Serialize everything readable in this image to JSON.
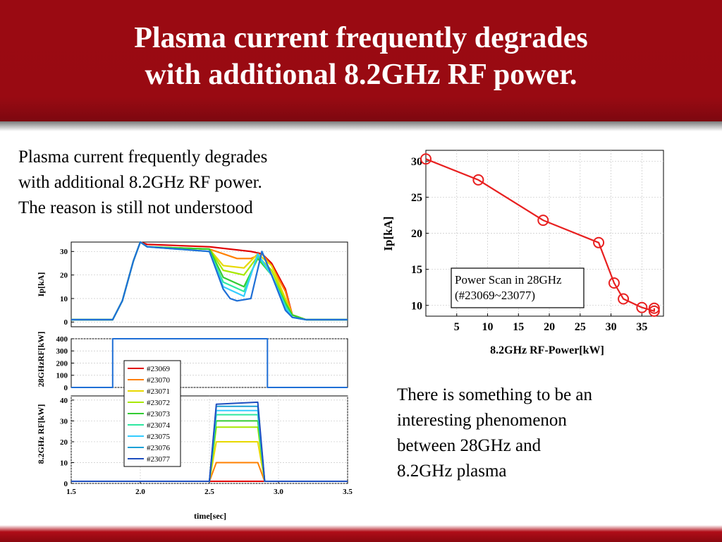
{
  "slide": {
    "title_lines": [
      "Plasma current frequently degrades",
      "with additional  8.2GHz RF power."
    ],
    "left_text_lines": [
      "Plasma current frequently degrades",
      "with additional 8.2GHz RF power.",
      "The reason is still not understood"
    ],
    "right_text_lines": [
      "There is something to be an",
      "interesting phenomenon",
      "between 28GHz and",
      "8.2GHz plasma"
    ]
  },
  "chart_data": [
    {
      "type": "line",
      "panel": "Ip",
      "ylabel": "Ip[kA]",
      "xlim": [
        1.5,
        3.5
      ],
      "ylim": [
        -2,
        34
      ],
      "yticks": [
        0,
        10,
        20,
        30
      ],
      "x_tick_labels_shown": false,
      "series": [
        {
          "color": "#e00000",
          "x": [
            1.5,
            1.8,
            1.87,
            1.95,
            2.0,
            2.05,
            2.5,
            2.8,
            2.88,
            2.95,
            3.05,
            3.1,
            3.2,
            3.5
          ],
          "y": [
            1,
            1,
            9,
            26,
            34,
            33,
            32,
            30,
            29,
            25,
            14,
            3,
            1,
            1
          ]
        },
        {
          "color": "#ff8000",
          "x": [
            1.5,
            1.8,
            1.87,
            1.95,
            2.0,
            2.05,
            2.5,
            2.7,
            2.8,
            2.88,
            2.95,
            3.05,
            3.1,
            3.2,
            3.5
          ],
          "y": [
            1,
            1,
            9,
            26,
            34,
            32,
            31,
            27,
            27,
            29,
            24,
            13,
            3,
            1,
            1
          ]
        },
        {
          "color": "#e8d800",
          "x": [
            1.5,
            1.8,
            1.87,
            1.95,
            2.0,
            2.05,
            2.5,
            2.6,
            2.75,
            2.85,
            2.95,
            3.05,
            3.1,
            3.2,
            3.5
          ],
          "y": [
            1,
            1,
            9,
            26,
            34,
            32,
            31,
            24,
            23,
            29,
            24,
            10,
            3,
            1,
            1
          ]
        },
        {
          "color": "#a8e800",
          "x": [
            1.5,
            1.8,
            1.87,
            1.95,
            2.0,
            2.05,
            2.5,
            2.6,
            2.75,
            2.85,
            2.95,
            3.05,
            3.1,
            3.2,
            3.5
          ],
          "y": [
            1,
            1,
            9,
            26,
            34,
            32,
            31,
            22,
            20,
            28,
            22,
            9,
            3,
            1,
            1
          ]
        },
        {
          "color": "#33cc33",
          "x": [
            1.5,
            1.8,
            1.87,
            1.95,
            2.0,
            2.05,
            2.5,
            2.6,
            2.75,
            2.85,
            2.95,
            3.05,
            3.1,
            3.2,
            3.5
          ],
          "y": [
            1,
            1,
            9,
            26,
            34,
            32,
            31,
            19,
            15,
            27,
            20,
            8,
            3,
            1,
            1
          ]
        },
        {
          "color": "#2ee8a0",
          "x": [
            1.5,
            1.8,
            1.87,
            1.95,
            2.0,
            2.05,
            2.5,
            2.6,
            2.75,
            2.85,
            2.95,
            3.05,
            3.1,
            3.2,
            3.5
          ],
          "y": [
            1,
            1,
            9,
            26,
            34,
            32,
            30,
            17,
            13,
            28,
            20,
            7,
            2,
            1,
            1
          ]
        },
        {
          "color": "#33ccff",
          "x": [
            1.5,
            1.8,
            1.87,
            1.95,
            2.0,
            2.05,
            2.5,
            2.6,
            2.75,
            2.85,
            2.95,
            3.05,
            3.1,
            3.2,
            3.5
          ],
          "y": [
            1,
            1,
            9,
            26,
            34,
            32,
            30,
            15,
            11,
            29,
            20,
            6,
            2,
            1,
            1
          ]
        },
        {
          "color": "#1f6fd6",
          "x": [
            1.5,
            1.8,
            1.87,
            1.95,
            2.0,
            2.05,
            2.5,
            2.6,
            2.65,
            2.7,
            2.8,
            2.88,
            2.95,
            3.05,
            3.1,
            3.2,
            3.5
          ],
          "y": [
            1,
            1,
            9,
            26,
            34,
            32,
            30,
            14,
            10,
            9,
            10,
            30,
            20,
            5,
            2,
            1,
            1
          ]
        }
      ]
    },
    {
      "type": "line",
      "panel": "28GHz RF",
      "ylabel": "28GHzRF[kW]",
      "xlim": [
        1.5,
        3.5
      ],
      "ylim": [
        0,
        400
      ],
      "yticks": [
        0,
        100,
        200,
        300,
        400
      ],
      "x_tick_labels_shown": false,
      "series": [
        {
          "color": "#1f6fd6",
          "x": [
            1.5,
            1.8,
            1.8,
            2.92,
            2.92,
            3.5
          ],
          "y": [
            0,
            0,
            400,
            400,
            0,
            0
          ]
        }
      ]
    },
    {
      "type": "line",
      "panel": "8.2GHz RF",
      "ylabel": "8.2GHz RF[kW]",
      "xlabel": "time[sec]",
      "xlim": [
        1.5,
        3.5
      ],
      "ylim": [
        0,
        42
      ],
      "xticks": [
        1.5,
        2.0,
        2.5,
        3.0,
        3.5
      ],
      "xtick_labels": [
        "1.5",
        "2.0",
        "2.5",
        "3.0",
        "3.5"
      ],
      "yticks": [
        0,
        10,
        20,
        30,
        40
      ],
      "legend_position": "center",
      "legend": [
        "#23069",
        "#23070",
        "#23071",
        "#23072",
        "#23073",
        "#23074",
        "#23075",
        "#23076",
        "#23077"
      ],
      "series": [
        {
          "name": "#23069",
          "color": "#e00000",
          "x": [
            1.5,
            2.5,
            2.55,
            2.85,
            2.9,
            3.5
          ],
          "y": [
            1,
            1,
            1,
            1,
            1,
            1
          ]
        },
        {
          "name": "#23070",
          "color": "#ff8000",
          "x": [
            1.5,
            2.5,
            2.55,
            2.85,
            2.9,
            3.5
          ],
          "y": [
            1,
            1,
            10,
            10,
            1,
            1
          ]
        },
        {
          "name": "#23071",
          "color": "#e8d800",
          "x": [
            1.5,
            2.5,
            2.55,
            2.85,
            2.9,
            3.5
          ],
          "y": [
            1,
            1,
            20,
            20,
            1,
            1
          ]
        },
        {
          "name": "#23072",
          "color": "#a8e800",
          "x": [
            1.5,
            2.5,
            2.55,
            2.85,
            2.9,
            3.5
          ],
          "y": [
            1,
            1,
            27,
            27,
            1,
            1
          ]
        },
        {
          "name": "#23073",
          "color": "#33cc33",
          "x": [
            1.5,
            2.5,
            2.55,
            2.85,
            2.9,
            3.5
          ],
          "y": [
            1,
            1,
            30,
            30,
            1,
            1
          ]
        },
        {
          "name": "#23074",
          "color": "#2ee8a0",
          "x": [
            1.5,
            2.5,
            2.55,
            2.85,
            2.9,
            3.5
          ],
          "y": [
            1,
            1,
            33,
            33,
            1,
            1
          ]
        },
        {
          "name": "#23075",
          "color": "#33ccff",
          "x": [
            1.5,
            2.5,
            2.55,
            2.85,
            2.9,
            3.5
          ],
          "y": [
            1,
            1,
            35,
            35,
            1,
            1
          ]
        },
        {
          "name": "#23076",
          "color": "#1ca0d6",
          "x": [
            1.5,
            2.5,
            2.55,
            2.85,
            2.9,
            3.5
          ],
          "y": [
            1,
            1,
            37,
            37,
            1,
            1
          ]
        },
        {
          "name": "#23077",
          "color": "#1f4fbf",
          "x": [
            1.5,
            2.5,
            2.55,
            2.85,
            2.9,
            3.5
          ],
          "y": [
            1,
            1,
            38,
            39,
            1,
            1
          ]
        }
      ]
    },
    {
      "type": "line",
      "panel": "power scan",
      "xlabel": "8.2GHz RF-Power[kW]",
      "ylabel": "Ip[kA]",
      "xlim": [
        0,
        38.5
      ],
      "ylim": [
        8.5,
        31.5
      ],
      "xticks": [
        5,
        10,
        15,
        20,
        25,
        30,
        35
      ],
      "yticks": [
        10,
        15,
        20,
        25,
        30
      ],
      "annotation": [
        "Power Scan in 28GHz",
        "(#23069~23077)"
      ],
      "series": [
        {
          "color": "#e82020",
          "marker": "circle",
          "x": [
            0,
            8.5,
            19,
            28,
            30.5,
            32,
            35,
            37,
            37
          ],
          "y": [
            30.3,
            27.4,
            21.8,
            18.7,
            13.1,
            10.9,
            9.7,
            9.2,
            9.6
          ]
        }
      ]
    }
  ]
}
